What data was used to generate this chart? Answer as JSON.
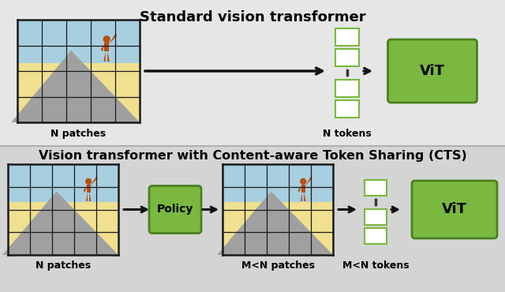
{
  "bg_top": "#e6e6e6",
  "bg_bottom": "#d4d4d4",
  "title_top": "Standard vision transformer",
  "title_bottom": "Vision transformer with Content-aware Token Sharing (CTS)",
  "label_n_patches": "N patches",
  "label_n_tokens": "N tokens",
  "label_m_patches": "M<N patches",
  "label_m_tokens": "M<N tokens",
  "label_policy": "Policy",
  "label_vit": "ViT",
  "grid_color": "#1a1a1a",
  "sky_color": "#a8cfe0",
  "ground_color": "#f0e090",
  "mountain_color": "#a0a0a0",
  "person_color": "#b85010",
  "token_fill": "#ffffff",
  "token_edge": "#7ab840",
  "vit_fill": "#7ab840",
  "vit_edge": "#4a8020",
  "policy_fill": "#7ab840",
  "policy_edge": "#4a8020",
  "arrow_color": "#111111",
  "sep_color": "#b0b0b0"
}
